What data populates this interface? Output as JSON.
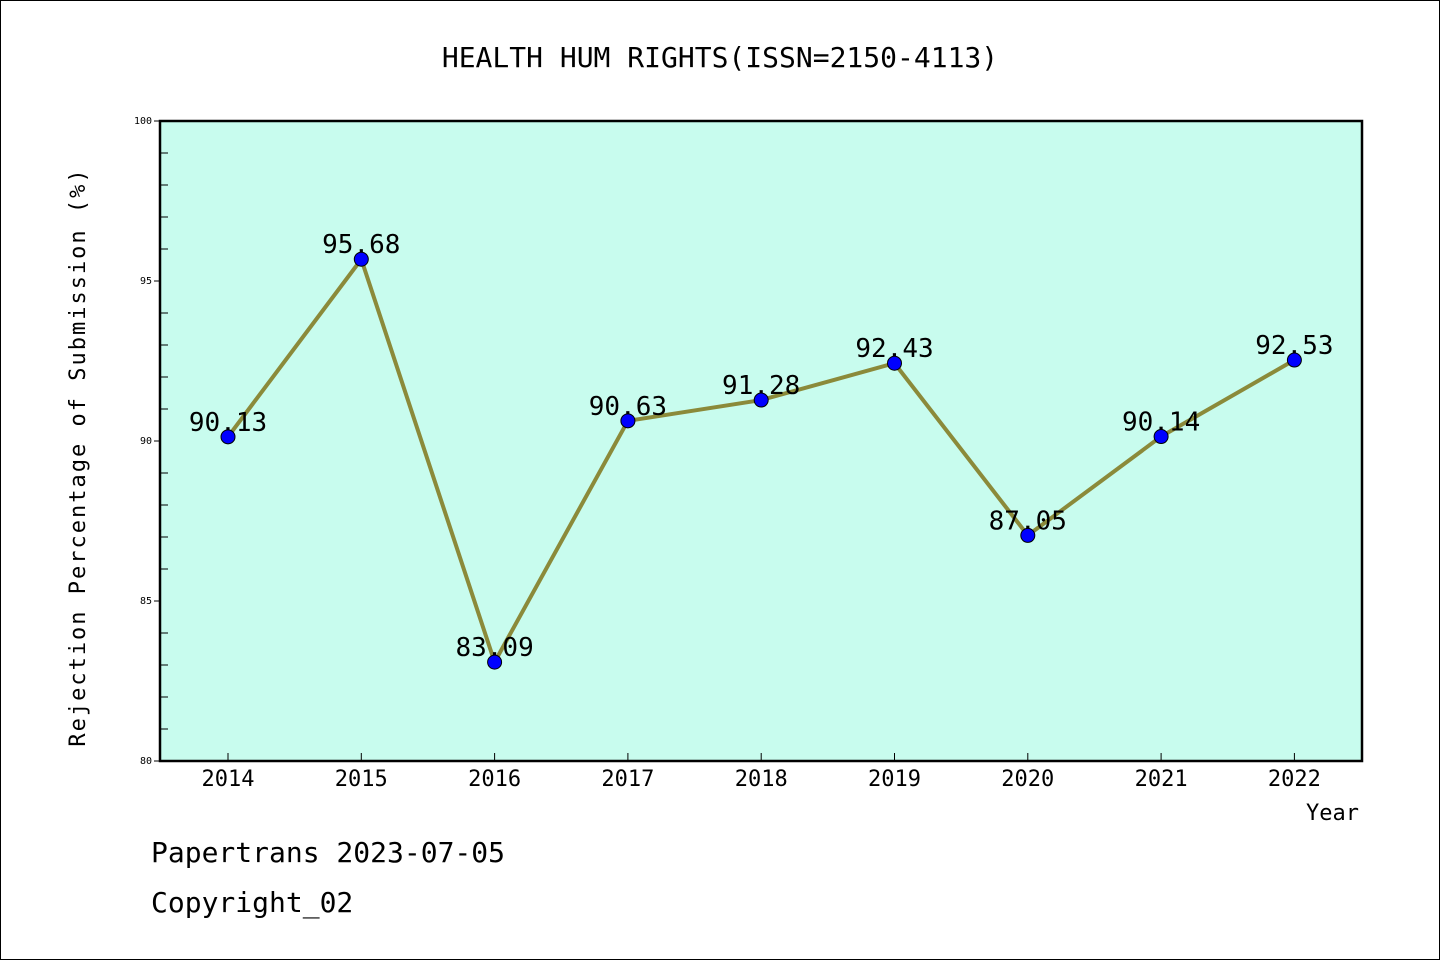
{
  "chart_data": {
    "type": "line",
    "title": "HEALTH HUM RIGHTS(ISSN=2150-4113)",
    "xlabel": "Year",
    "ylabel": "Rejection Percentage of Submission (%)",
    "categories": [
      "2014",
      "2015",
      "2016",
      "2017",
      "2018",
      "2019",
      "2020",
      "2021",
      "2022"
    ],
    "values": [
      90.13,
      95.68,
      83.09,
      90.63,
      91.28,
      92.43,
      87.05,
      90.14,
      92.53
    ],
    "data_labels": [
      "90.13",
      "95.68",
      "83.09",
      "90.63",
      "91.28",
      "92.43",
      "87.05",
      "90.14",
      "92.53"
    ],
    "ylim": [
      80,
      100
    ],
    "yticks": [
      80,
      85,
      90,
      95,
      100
    ],
    "grid": false,
    "colors": {
      "plot_background": "#c8fcee",
      "line": "#8b8a3a",
      "marker": "#0000ff"
    }
  },
  "footer": {
    "line1": "Papertrans 2023-07-05",
    "line2": "Copyright_02"
  }
}
